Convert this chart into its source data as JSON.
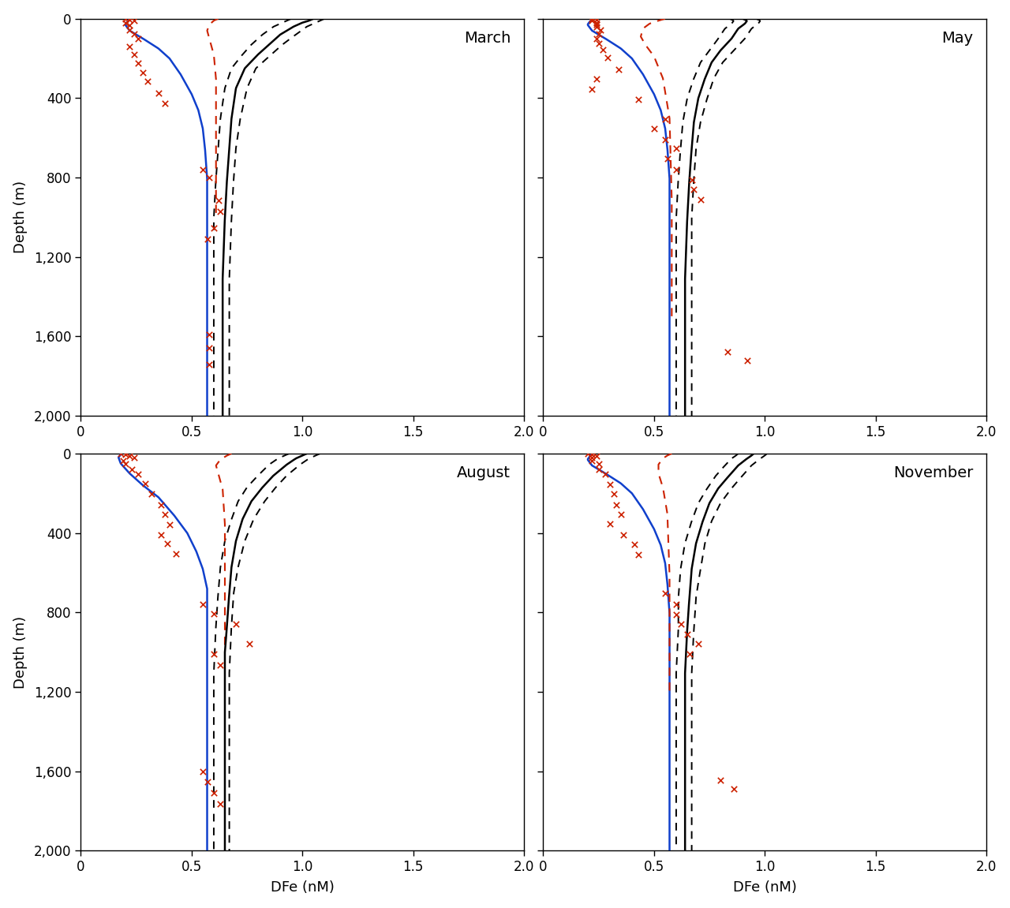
{
  "panels": [
    "March",
    "May",
    "August",
    "November"
  ],
  "ylabel": "Depth (m)",
  "xlabel": "DFe (nM)",
  "xlim": [
    0,
    2.0
  ],
  "ylim": [
    0,
    2000
  ],
  "yticks": [
    0,
    400,
    800,
    1200,
    1600,
    2000
  ],
  "ytick_labels": [
    "0",
    "400",
    "800",
    "1,200",
    "1,600",
    "2,000"
  ],
  "xticks": [
    0,
    0.5,
    1.0,
    1.5,
    2.0
  ],
  "march": {
    "blue_x": [
      0.22,
      0.22,
      0.21,
      0.2,
      0.22,
      0.28,
      0.35,
      0.4,
      0.45,
      0.5,
      0.53,
      0.55,
      0.56,
      0.57,
      0.57,
      0.57,
      0.57,
      0.57
    ],
    "blue_y": [
      0,
      5,
      15,
      30,
      60,
      100,
      150,
      200,
      280,
      380,
      460,
      550,
      650,
      800,
      1000,
      1400,
      1800,
      2000
    ],
    "red_x": [
      0.62,
      0.6,
      0.58,
      0.57,
      0.58,
      0.6,
      0.61,
      0.61,
      0.61
    ],
    "red_y": [
      0,
      10,
      30,
      60,
      100,
      180,
      300,
      600,
      1000
    ],
    "blk_s_x": [
      1.05,
      1.03,
      1.0,
      0.96,
      0.9,
      0.85,
      0.8,
      0.74,
      0.7,
      0.68,
      0.67,
      0.66,
      0.65,
      0.64,
      0.64,
      0.64,
      0.64
    ],
    "blk_s_y": [
      0,
      10,
      20,
      40,
      80,
      130,
      180,
      250,
      350,
      500,
      650,
      800,
      1000,
      1300,
      1600,
      1900,
      2000
    ],
    "blk_d1_x": [
      0.95,
      0.93,
      0.91,
      0.87,
      0.82,
      0.77,
      0.73,
      0.68,
      0.65,
      0.63,
      0.62,
      0.61,
      0.6,
      0.6,
      0.6,
      0.6
    ],
    "blk_d1_y": [
      0,
      10,
      20,
      40,
      80,
      130,
      180,
      250,
      350,
      500,
      650,
      800,
      1000,
      1300,
      1700,
      2000
    ],
    "blk_d2_x": [
      1.1,
      1.08,
      1.06,
      1.02,
      0.97,
      0.91,
      0.86,
      0.79,
      0.75,
      0.72,
      0.7,
      0.69,
      0.68,
      0.67,
      0.67,
      0.67
    ],
    "blk_d2_y": [
      0,
      10,
      20,
      40,
      80,
      130,
      180,
      250,
      350,
      500,
      650,
      800,
      1000,
      1300,
      1700,
      2000
    ],
    "sc_x": [
      0.2,
      0.22,
      0.24,
      0.2,
      0.22,
      0.22,
      0.24,
      0.26,
      0.22,
      0.24,
      0.26,
      0.28,
      0.3,
      0.35,
      0.38,
      0.55,
      0.58,
      0.62,
      0.63,
      0.6,
      0.57,
      0.58,
      0.58,
      0.58
    ],
    "sc_y": [
      0,
      5,
      10,
      20,
      35,
      55,
      75,
      100,
      140,
      180,
      225,
      270,
      315,
      375,
      425,
      760,
      800,
      915,
      970,
      1055,
      1110,
      1590,
      1660,
      1740
    ]
  },
  "may": {
    "blue_x": [
      0.22,
      0.22,
      0.21,
      0.2,
      0.22,
      0.28,
      0.35,
      0.4,
      0.45,
      0.5,
      0.53,
      0.55,
      0.56,
      0.57,
      0.57,
      0.57,
      0.57,
      0.57
    ],
    "blue_y": [
      0,
      5,
      15,
      30,
      60,
      100,
      150,
      200,
      280,
      380,
      460,
      550,
      650,
      800,
      1000,
      1400,
      1800,
      2000
    ],
    "red_x": [
      0.55,
      0.52,
      0.48,
      0.45,
      0.44,
      0.46,
      0.5,
      0.54,
      0.57,
      0.58,
      0.58
    ],
    "red_y": [
      0,
      10,
      25,
      50,
      90,
      130,
      190,
      300,
      500,
      900,
      1500
    ],
    "blk_s_x": [
      0.9,
      0.92,
      0.91,
      0.88,
      0.85,
      0.8,
      0.76,
      0.73,
      0.7,
      0.68,
      0.67,
      0.66,
      0.65,
      0.64,
      0.64,
      0.64,
      0.64
    ],
    "blk_s_y": [
      0,
      10,
      25,
      50,
      100,
      160,
      220,
      300,
      400,
      520,
      650,
      800,
      1000,
      1300,
      1600,
      1900,
      2000
    ],
    "blk_d1_x": [
      0.84,
      0.86,
      0.85,
      0.82,
      0.79,
      0.75,
      0.71,
      0.68,
      0.65,
      0.63,
      0.62,
      0.61,
      0.6,
      0.6,
      0.6,
      0.6
    ],
    "blk_d1_y": [
      0,
      10,
      25,
      50,
      100,
      160,
      220,
      300,
      400,
      520,
      650,
      800,
      1000,
      1300,
      1700,
      2000
    ],
    "blk_d2_x": [
      0.96,
      0.98,
      0.97,
      0.94,
      0.91,
      0.86,
      0.81,
      0.77,
      0.74,
      0.71,
      0.69,
      0.68,
      0.67,
      0.67,
      0.67,
      0.67
    ],
    "blk_d2_y": [
      0,
      10,
      25,
      50,
      100,
      160,
      220,
      300,
      400,
      520,
      650,
      800,
      1000,
      1300,
      1700,
      2000
    ],
    "sc_x": [
      0.22,
      0.24,
      0.22,
      0.24,
      0.24,
      0.24,
      0.26,
      0.25,
      0.24,
      0.25,
      0.27,
      0.29,
      0.34,
      0.24,
      0.22,
      0.43,
      0.55,
      0.5,
      0.55,
      0.6,
      0.56,
      0.6,
      0.67,
      0.68,
      0.71,
      0.83,
      0.92
    ],
    "sc_y": [
      0,
      5,
      10,
      20,
      30,
      40,
      55,
      75,
      100,
      125,
      155,
      195,
      255,
      305,
      355,
      405,
      505,
      555,
      610,
      655,
      705,
      760,
      810,
      860,
      910,
      1680,
      1720
    ]
  },
  "august": {
    "blue_x": [
      0.18,
      0.18,
      0.17,
      0.18,
      0.22,
      0.28,
      0.35,
      0.42,
      0.48,
      0.52,
      0.55,
      0.57,
      0.57,
      0.57,
      0.57,
      0.57
    ],
    "blue_y": [
      0,
      5,
      20,
      50,
      100,
      160,
      220,
      310,
      400,
      490,
      580,
      680,
      800,
      1000,
      1500,
      2000
    ],
    "red_x": [
      0.68,
      0.66,
      0.63,
      0.61,
      0.62,
      0.64,
      0.65,
      0.65,
      0.65
    ],
    "red_y": [
      0,
      10,
      30,
      60,
      100,
      180,
      350,
      600,
      1000
    ],
    "blk_s_x": [
      1.02,
      1.0,
      0.97,
      0.93,
      0.87,
      0.82,
      0.77,
      0.73,
      0.7,
      0.68,
      0.67,
      0.66,
      0.65,
      0.65,
      0.65,
      0.65
    ],
    "blk_s_y": [
      0,
      10,
      25,
      55,
      110,
      170,
      240,
      330,
      440,
      570,
      700,
      860,
      1000,
      1400,
      1800,
      2000
    ],
    "blk_d1_x": [
      0.94,
      0.92,
      0.89,
      0.85,
      0.8,
      0.75,
      0.71,
      0.68,
      0.65,
      0.63,
      0.62,
      0.61,
      0.6,
      0.6,
      0.6
    ],
    "blk_d1_y": [
      0,
      10,
      25,
      55,
      110,
      170,
      240,
      330,
      440,
      570,
      700,
      860,
      1100,
      1500,
      2000
    ],
    "blk_d2_x": [
      1.08,
      1.06,
      1.03,
      0.99,
      0.93,
      0.88,
      0.83,
      0.78,
      0.74,
      0.71,
      0.69,
      0.68,
      0.67,
      0.67,
      0.67
    ],
    "blk_d2_y": [
      0,
      10,
      25,
      55,
      110,
      170,
      240,
      330,
      440,
      570,
      700,
      860,
      1100,
      1500,
      2000
    ],
    "sc_x": [
      0.18,
      0.2,
      0.22,
      0.24,
      0.19,
      0.2,
      0.23,
      0.26,
      0.29,
      0.32,
      0.36,
      0.38,
      0.4,
      0.36,
      0.39,
      0.43,
      0.55,
      0.6,
      0.7,
      0.76,
      0.6,
      0.63,
      0.55,
      0.57,
      0.6,
      0.63
    ],
    "sc_y": [
      0,
      5,
      12,
      22,
      35,
      52,
      78,
      105,
      152,
      205,
      258,
      308,
      358,
      408,
      455,
      505,
      758,
      808,
      858,
      960,
      1010,
      1065,
      1600,
      1655,
      1710,
      1765
    ]
  },
  "november": {
    "blue_x": [
      0.22,
      0.22,
      0.21,
      0.2,
      0.22,
      0.28,
      0.35,
      0.4,
      0.45,
      0.5,
      0.53,
      0.55,
      0.56,
      0.57,
      0.57,
      0.57,
      0.57,
      0.57
    ],
    "blue_y": [
      0,
      5,
      15,
      30,
      60,
      100,
      150,
      200,
      280,
      380,
      460,
      550,
      650,
      800,
      1000,
      1400,
      1800,
      2000
    ],
    "red_x": [
      0.58,
      0.56,
      0.54,
      0.52,
      0.52,
      0.54,
      0.56,
      0.57,
      0.57
    ],
    "red_y": [
      0,
      10,
      25,
      55,
      100,
      170,
      300,
      600,
      1200
    ],
    "blk_s_x": [
      0.95,
      0.94,
      0.92,
      0.88,
      0.84,
      0.79,
      0.75,
      0.72,
      0.69,
      0.67,
      0.66,
      0.65,
      0.64,
      0.64,
      0.64,
      0.64
    ],
    "blk_s_y": [
      0,
      10,
      25,
      60,
      110,
      175,
      250,
      340,
      450,
      580,
      720,
      880,
      1100,
      1400,
      1800,
      2000
    ],
    "blk_d1_x": [
      0.88,
      0.87,
      0.85,
      0.82,
      0.78,
      0.74,
      0.7,
      0.67,
      0.64,
      0.62,
      0.61,
      0.61,
      0.6,
      0.6,
      0.6
    ],
    "blk_d1_y": [
      0,
      10,
      25,
      60,
      110,
      175,
      250,
      340,
      450,
      580,
      720,
      880,
      1100,
      1500,
      2000
    ],
    "blk_d2_x": [
      1.01,
      1.0,
      0.98,
      0.94,
      0.9,
      0.85,
      0.8,
      0.76,
      0.73,
      0.71,
      0.69,
      0.68,
      0.67,
      0.67,
      0.67
    ],
    "blk_d2_y": [
      0,
      10,
      25,
      60,
      110,
      175,
      250,
      340,
      450,
      580,
      720,
      880,
      1100,
      1500,
      2000
    ],
    "sc_x": [
      0.2,
      0.22,
      0.24,
      0.22,
      0.22,
      0.25,
      0.25,
      0.28,
      0.3,
      0.32,
      0.33,
      0.35,
      0.3,
      0.36,
      0.41,
      0.43,
      0.55,
      0.6,
      0.6,
      0.62,
      0.65,
      0.7,
      0.66,
      0.8,
      0.86
    ],
    "sc_y": [
      0,
      5,
      12,
      22,
      35,
      52,
      78,
      105,
      155,
      205,
      258,
      308,
      355,
      408,
      458,
      508,
      705,
      760,
      810,
      860,
      910,
      960,
      1010,
      1645,
      1690
    ]
  },
  "bg_color": "#ffffff",
  "blue_color": "#1040cc",
  "red_color": "#cc2200",
  "black_color": "#000000"
}
